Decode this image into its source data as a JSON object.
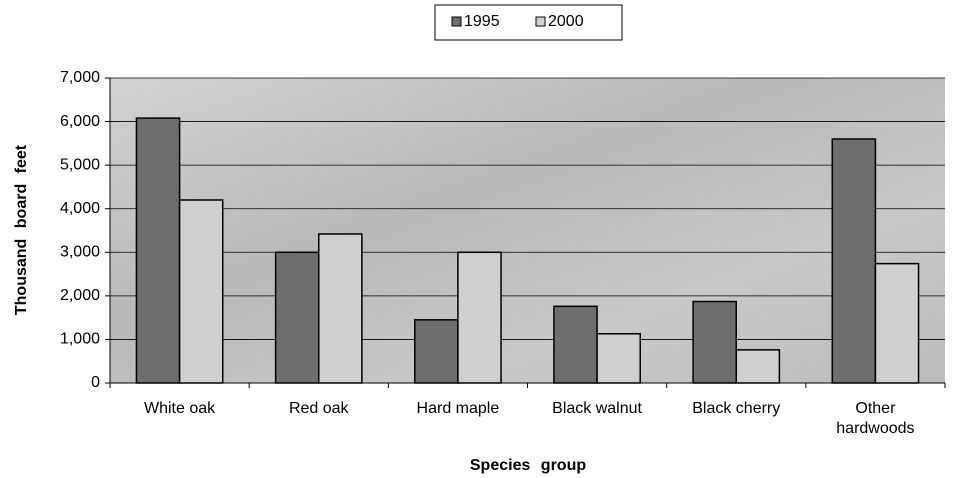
{
  "chart_data": {
    "type": "bar",
    "categories": [
      "White oak",
      "Red oak",
      "Hard maple",
      "Black walnut",
      "Black cherry",
      "Other hardwoods"
    ],
    "series": [
      {
        "name": "1995",
        "color": "#6e6e6e",
        "values": [
          6080,
          3000,
          1450,
          1760,
          1870,
          5600
        ]
      },
      {
        "name": "2000",
        "color": "#cfcfcf",
        "values": [
          4200,
          3420,
          3000,
          1130,
          760,
          2740
        ]
      }
    ],
    "ylim": [
      0,
      7000
    ],
    "yticks": [
      0,
      {
        "value": 1000,
        "label": "1,000"
      },
      {
        "value": 2000,
        "label": "2,000"
      },
      {
        "value": 3000,
        "label": "3,000"
      },
      {
        "value": 4000,
        "label": "4,000"
      },
      {
        "value": 5000,
        "label": "5,000"
      },
      {
        "value": 6000,
        "label": "6,000"
      },
      {
        "value": 7000,
        "label": "7,000"
      }
    ],
    "xlabel": "Species group",
    "ylabel": "Thousand board feet",
    "grid": true,
    "legend": "top"
  }
}
